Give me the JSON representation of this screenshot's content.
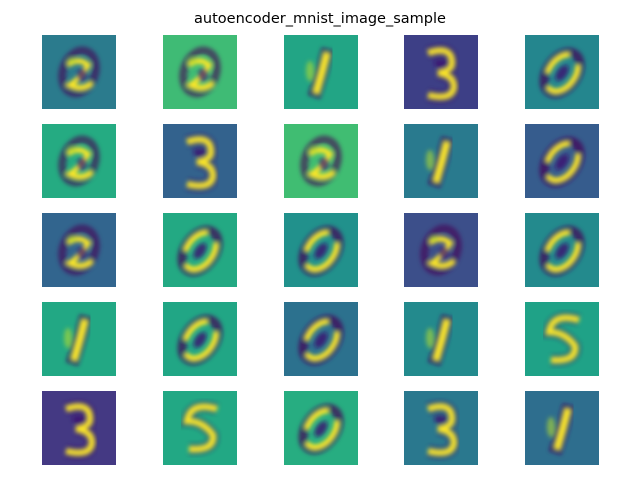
{
  "chart_data": {
    "type": "heatmap",
    "title": "autoencoder_mnist_image_sample",
    "layout": {
      "rows": 5,
      "cols": 5
    },
    "colormap": "viridis",
    "axes": "off",
    "tiles": [
      {
        "row": 0,
        "col": 0,
        "background": "#2b7b8d",
        "glyph": "a"
      },
      {
        "row": 0,
        "col": 1,
        "background": "#3fbb75",
        "glyph": "a"
      },
      {
        "row": 0,
        "col": 2,
        "background": "#22a585",
        "glyph": "1"
      },
      {
        "row": 0,
        "col": 3,
        "background": "#3d3f86",
        "glyph": "3"
      },
      {
        "row": 0,
        "col": 4,
        "background": "#24868e",
        "glyph": "0"
      },
      {
        "row": 1,
        "col": 0,
        "background": "#25ab82",
        "glyph": "a"
      },
      {
        "row": 1,
        "col": 1,
        "background": "#33628d",
        "glyph": "3"
      },
      {
        "row": 1,
        "col": 2,
        "background": "#40bd72",
        "glyph": "a"
      },
      {
        "row": 1,
        "col": 3,
        "background": "#297a8e",
        "glyph": "1"
      },
      {
        "row": 1,
        "col": 4,
        "background": "#365c8d",
        "glyph": "0"
      },
      {
        "row": 2,
        "col": 0,
        "background": "#32658e",
        "glyph": "a"
      },
      {
        "row": 2,
        "col": 1,
        "background": "#23a983",
        "glyph": "0"
      },
      {
        "row": 2,
        "col": 2,
        "background": "#21918c",
        "glyph": "0"
      },
      {
        "row": 2,
        "col": 3,
        "background": "#3c4f8a",
        "glyph": "a"
      },
      {
        "row": 2,
        "col": 4,
        "background": "#238a8d",
        "glyph": "0"
      },
      {
        "row": 3,
        "col": 0,
        "background": "#22a884",
        "glyph": "1"
      },
      {
        "row": 3,
        "col": 1,
        "background": "#21a685",
        "glyph": "0"
      },
      {
        "row": 3,
        "col": 2,
        "background": "#2c718e",
        "glyph": "0"
      },
      {
        "row": 3,
        "col": 3,
        "background": "#238a8d",
        "glyph": "1"
      },
      {
        "row": 3,
        "col": 4,
        "background": "#1fa287",
        "glyph": "5"
      },
      {
        "row": 4,
        "col": 0,
        "background": "#443983",
        "glyph": "3"
      },
      {
        "row": 4,
        "col": 1,
        "background": "#22a884",
        "glyph": "5"
      },
      {
        "row": 4,
        "col": 2,
        "background": "#27ad81",
        "glyph": "0"
      },
      {
        "row": 4,
        "col": 3,
        "background": "#2a788e",
        "glyph": "3"
      },
      {
        "row": 4,
        "col": 4,
        "background": "#2e6e8e",
        "glyph": "1"
      }
    ]
  }
}
